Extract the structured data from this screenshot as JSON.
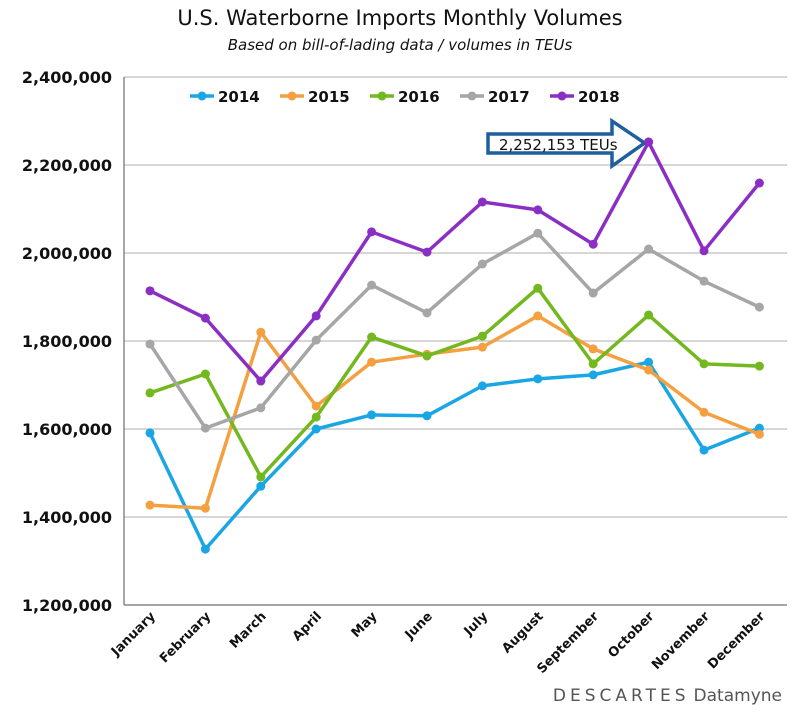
{
  "chart_data": {
    "type": "line",
    "title": "U.S. Waterborne Imports Monthly Volumes",
    "subtitle": "Based on bill-of-lading data / volumes in TEUs",
    "xlabel": "",
    "ylabel": "",
    "ylim": [
      1200000,
      2400000
    ],
    "yticks": [
      "1,200,000",
      "1,400,000",
      "1,600,000",
      "1,800,000",
      "2,000,000",
      "2,200,000",
      "2,400,000"
    ],
    "ytick_values": [
      1200000,
      1400000,
      1600000,
      1800000,
      2000000,
      2200000,
      2400000
    ],
    "grid": "horizontal",
    "legend_position": "top",
    "categories": [
      "January",
      "February",
      "March",
      "April",
      "May",
      "June",
      "July",
      "August",
      "September",
      "October",
      "November",
      "December"
    ],
    "series": [
      {
        "name": "2014",
        "color": "#1aa6e4",
        "values": [
          1591000,
          1327000,
          1470000,
          1600000,
          1632000,
          1630000,
          1698000,
          1714000,
          1723000,
          1752000,
          1552000,
          1602000
        ]
      },
      {
        "name": "2015",
        "color": "#f4a040",
        "values": [
          1427000,
          1420000,
          1820000,
          1652000,
          1752000,
          1770000,
          1786000,
          1857000,
          1782000,
          1734000,
          1638000,
          1588000
        ]
      },
      {
        "name": "2016",
        "color": "#72b81e",
        "values": [
          1682000,
          1725000,
          1491000,
          1627000,
          1809000,
          1766000,
          1811000,
          1920000,
          1748000,
          1859000,
          1748000,
          1743000
        ]
      },
      {
        "name": "2017",
        "color": "#a6a6a6",
        "values": [
          1793000,
          1602000,
          1648000,
          1802000,
          1927000,
          1864000,
          1975000,
          2045000,
          1909000,
          2009000,
          1936000,
          1877000
        ]
      },
      {
        "name": "2018",
        "color": "#8b2fc4",
        "values": [
          1914000,
          1852000,
          1709000,
          1857000,
          2048000,
          2002000,
          2116000,
          2098000,
          2020000,
          2252153,
          2005000,
          2159000
        ]
      }
    ],
    "annotation": {
      "text": "2,252,153 TEUs",
      "category": "October",
      "series": "2018",
      "color": "#1f5f9e"
    }
  },
  "logo": {
    "brand": "DESCARTES",
    "product": "Datamyne",
    "accent": "#1f8fd0"
  }
}
